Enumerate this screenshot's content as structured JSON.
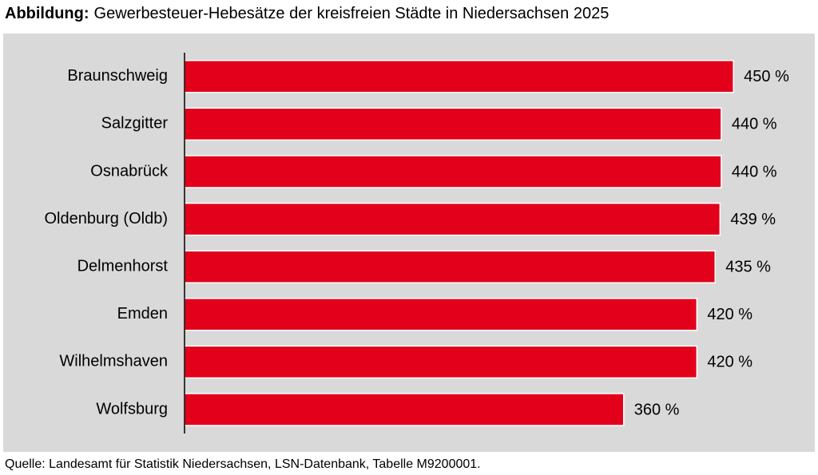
{
  "chart_data": {
    "type": "bar",
    "orientation": "horizontal",
    "title_prefix": "Abbildung:",
    "title": "Gewerbesteuer-Hebesätze der kreisfreien Städte in Niedersachsen 2025",
    "categories": [
      "Braunschweig",
      "Salzgitter",
      "Osnabrück",
      "Oldenburg (Oldb)",
      "Delmenhorst",
      "Emden",
      "Wilhelmshaven",
      "Wolfsburg"
    ],
    "values": [
      450,
      440,
      440,
      439,
      435,
      420,
      420,
      360
    ],
    "value_labels": [
      "450 %",
      "440 %",
      "440 %",
      "439 %",
      "435 %",
      "420 %",
      "420 %",
      "360 %"
    ],
    "color": "#e2001a",
    "source": "Quelle: Landesamt für Statistik Niedersachsen, LSN-Datenbank, Tabelle M9200001."
  }
}
